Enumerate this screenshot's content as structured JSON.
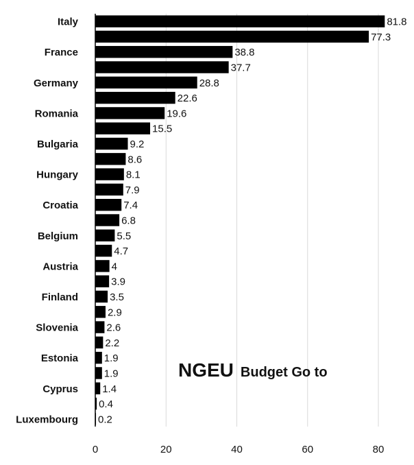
{
  "chart_data": {
    "type": "bar",
    "orientation": "horizontal",
    "title_main": "NGEU",
    "title_rest": "Budget Go to",
    "categories": [
      "Italy",
      "",
      "France",
      "",
      "Germany",
      "",
      "Romania",
      "",
      "Bulgaria",
      "",
      "Hungary",
      "",
      "Croatia",
      "",
      "Belgium",
      "",
      "Austria",
      "",
      "Finland",
      "",
      "Slovenia",
      "",
      "Estonia",
      "",
      "Cyprus",
      "",
      "Luxembourg"
    ],
    "values": [
      81.8,
      77.3,
      38.8,
      37.7,
      28.8,
      22.6,
      19.6,
      15.5,
      9.2,
      8.6,
      8.1,
      7.9,
      7.4,
      6.8,
      5.5,
      4.7,
      4,
      3.9,
      3.5,
      2.9,
      2.6,
      2.2,
      1.9,
      1.9,
      1.4,
      0.4,
      0.2
    ],
    "value_labels": [
      "81.8",
      "77.3",
      "38.8",
      "37.7",
      "28.8",
      "22.6",
      "19.6",
      "15.5",
      "9.2",
      "8.6",
      "8.1",
      "7.9",
      "7.4",
      "6.8",
      "5.5",
      "4.7",
      "4",
      "3.9",
      "3.5",
      "2.9",
      "2.6",
      "2.2",
      "1.9",
      "1.9",
      "1.4",
      "0.4",
      "0.2"
    ],
    "xticks": [
      "0",
      "20",
      "40",
      "60",
      "80"
    ],
    "xlim": [
      0,
      86
    ],
    "grid": true,
    "bar_color": "#000000",
    "grid_color": "#d9d9d9"
  }
}
